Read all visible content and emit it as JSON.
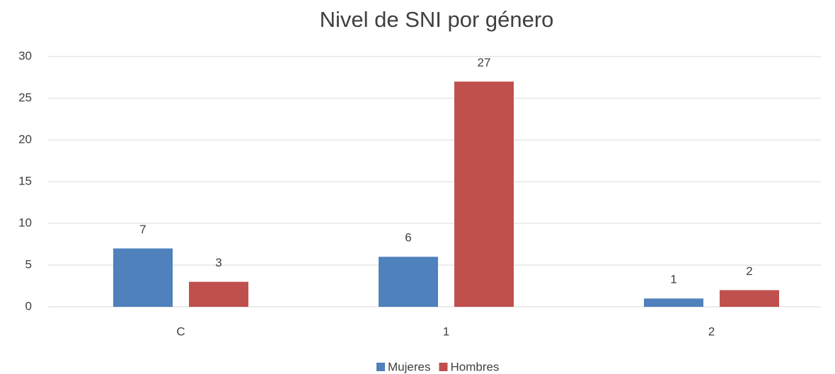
{
  "chart_data": {
    "type": "bar",
    "title": "Nivel de SNI por género",
    "categories": [
      "C",
      "1",
      "2"
    ],
    "series": [
      {
        "name": "Mujeres",
        "color": "#4f81bd",
        "values": [
          7,
          6,
          1
        ]
      },
      {
        "name": "Hombres",
        "color": "#c0504d",
        "values": [
          3,
          27,
          2
        ]
      }
    ],
    "ylim": [
      0,
      30
    ],
    "yticks": [
      0,
      5,
      10,
      15,
      20,
      25,
      30
    ],
    "grid": true,
    "legend": "bottom"
  }
}
